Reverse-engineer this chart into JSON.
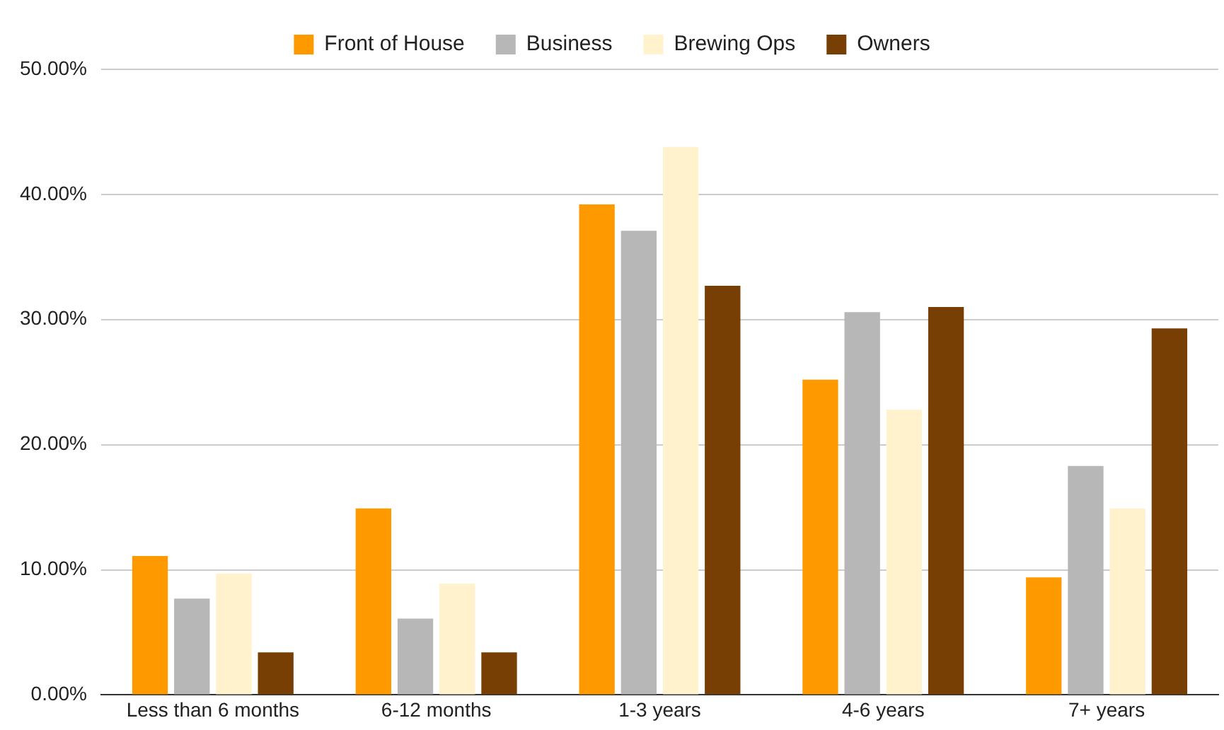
{
  "chart_data": {
    "type": "bar",
    "categories": [
      "Less than 6 months",
      "6-12 months",
      "1-3 years",
      "4-6 years",
      "7+ years"
    ],
    "series": [
      {
        "name": "Front of House",
        "color": "#ff9900",
        "values": [
          11.1,
          14.9,
          39.2,
          25.2,
          9.4
        ]
      },
      {
        "name": "Business",
        "color": "#b7b7b7",
        "values": [
          7.7,
          6.1,
          37.1,
          30.6,
          18.3
        ]
      },
      {
        "name": "Brewing Ops",
        "color": "#fff2cc",
        "values": [
          9.7,
          8.9,
          43.8,
          22.8,
          14.9
        ]
      },
      {
        "name": "Owners",
        "color": "#783f04",
        "values": [
          3.4,
          3.4,
          32.7,
          31.0,
          29.3
        ]
      }
    ],
    "ylim": [
      0,
      50
    ],
    "yticks": [
      {
        "value": 0,
        "label": "0.00%"
      },
      {
        "value": 10,
        "label": "10.00%"
      },
      {
        "value": 20,
        "label": "20.00%"
      },
      {
        "value": 30,
        "label": "30.00%"
      },
      {
        "value": 40,
        "label": "40.00%"
      },
      {
        "value": 50,
        "label": "50.00%"
      }
    ],
    "grid": "y",
    "legend": "top"
  }
}
